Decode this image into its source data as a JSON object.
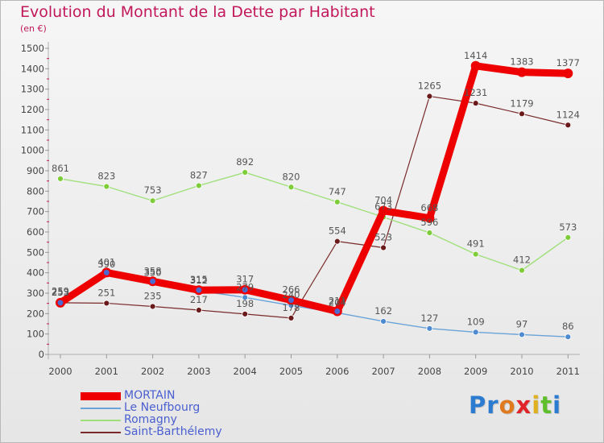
{
  "header": {
    "title": "Evolution du Montant de la Dette par Habitant",
    "subtitle": "(en €)"
  },
  "logo": {
    "text": "Proxiti",
    "letter_colors": [
      "#2b7bd0",
      "#2b7bd0",
      "#e07a1f",
      "#e0242a",
      "#e0b01f",
      "#5fbf2a",
      "#2b7bd0"
    ]
  },
  "chart_data": {
    "type": "line",
    "title": "Evolution du Montant de la Dette par Habitant",
    "subtitle": "(en €)",
    "xlabel": "",
    "ylabel": "",
    "x": [
      "2000",
      "2001",
      "2002",
      "2003",
      "2004",
      "2005",
      "2006",
      "2007",
      "2008",
      "2009",
      "2010",
      "2011"
    ],
    "ylim": [
      0,
      1500
    ],
    "yticks": [
      0,
      100,
      200,
      300,
      400,
      500,
      600,
      700,
      800,
      900,
      1000,
      1100,
      1200,
      1300,
      1400,
      1500
    ],
    "grid": false,
    "legend_position": "bottom-left",
    "series": [
      {
        "name": "MORTAIN",
        "color": "#ee0000",
        "point_color": "#4d6ad0",
        "line_width": 9,
        "marker_r": 6,
        "labels": true,
        "values": [
          253,
          401,
          358,
          315,
          317,
          266,
          211,
          704,
          668,
          1414,
          1383,
          1377
        ]
      },
      {
        "name": "Le Neufbourg",
        "color": "#6aa3d8",
        "point_color": "#4d8ad0",
        "line_width": 1.4,
        "marker_r": 3.5,
        "labels": true,
        "values": [
          259,
          390,
          350,
          312,
          279,
          240,
          204,
          162,
          127,
          109,
          97,
          86
        ]
      },
      {
        "name": "Romagny",
        "color": "#9fe07a",
        "point_color": "#7fcc3a",
        "line_width": 1.4,
        "marker_r": 3.5,
        "labels": true,
        "values": [
          861,
          823,
          753,
          827,
          892,
          820,
          747,
          673,
          596,
          491,
          412,
          573
        ]
      },
      {
        "name": "Saint-Barthélemy",
        "color": "#7a2a2a",
        "point_color": "#6a1a1a",
        "line_width": 1.2,
        "marker_r": 3.5,
        "labels": true,
        "values": [
          253,
          251,
          235,
          217,
          198,
          178,
          554,
          523,
          1265,
          1231,
          1179,
          1124
        ]
      }
    ]
  }
}
